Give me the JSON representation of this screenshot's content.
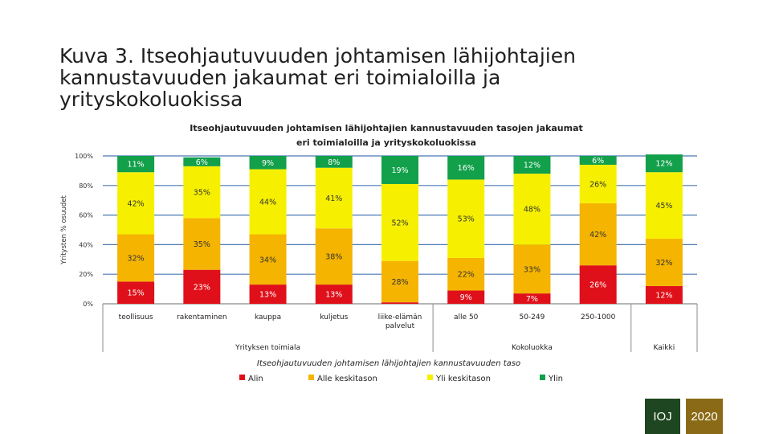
{
  "slide": {
    "title": "Kuva 3. Itseohjautuvuuden johtamisen lähijohtajien kannustavuuden jakaumat eri toimialoilla ja yrityskokoluokissa",
    "badge_left": "IOJ",
    "badge_right": "2020"
  },
  "chart_data": {
    "type": "bar",
    "stacked": true,
    "title_line1": "Itseohjautuvuuden johtamisen lähijohtajien kannustavuuden tasojen jakaumat",
    "title_line2": "eri toimialoilla ja yrityskokoluokissa",
    "ylabel": "Yritysten % osuudet",
    "xlabel": "Itseohjautuvuuden johtamisen lähijohtajien kannustavuuden taso",
    "ylim": [
      0,
      100
    ],
    "yticks": [
      "0%",
      "20%",
      "40%",
      "60%",
      "80%",
      "100%"
    ],
    "categories": [
      "teollisuus",
      "rakentaminen",
      "kauppa",
      "kuljetus",
      "liike-elämän palvelut",
      "alle 50",
      "50-249",
      "250-1000",
      "Kaikki"
    ],
    "category_label_lines": [
      [
        "teollisuus"
      ],
      [
        "rakentaminen"
      ],
      [
        "kauppa"
      ],
      [
        "kuljetus"
      ],
      [
        "liike-elämän",
        "palvelut"
      ],
      [
        "alle 50"
      ],
      [
        "50-249"
      ],
      [
        "250-1000"
      ],
      [
        ""
      ]
    ],
    "groups": [
      {
        "label": "Yrityksen toimiala",
        "start": 0,
        "end": 4
      },
      {
        "label": "Kokoluokka",
        "start": 5,
        "end": 7
      },
      {
        "label": "Kaikki",
        "start": 8,
        "end": 8
      }
    ],
    "series": [
      {
        "name": "Alin",
        "color": "#e0101a",
        "values": [
          15,
          23,
          13,
          13,
          1,
          9,
          7,
          26,
          12
        ]
      },
      {
        "name": "Alle keskitason",
        "color": "#f5b400",
        "values": [
          32,
          35,
          34,
          38,
          28,
          22,
          33,
          42,
          32
        ]
      },
      {
        "name": "Yli keskitason",
        "color": "#f6f000",
        "values": [
          42,
          35,
          44,
          41,
          52,
          53,
          48,
          26,
          45
        ]
      },
      {
        "name": "Ylin",
        "color": "#12a04a",
        "values": [
          11,
          6,
          9,
          8,
          19,
          16,
          12,
          6,
          12
        ]
      }
    ],
    "legend_position": "bottom"
  }
}
